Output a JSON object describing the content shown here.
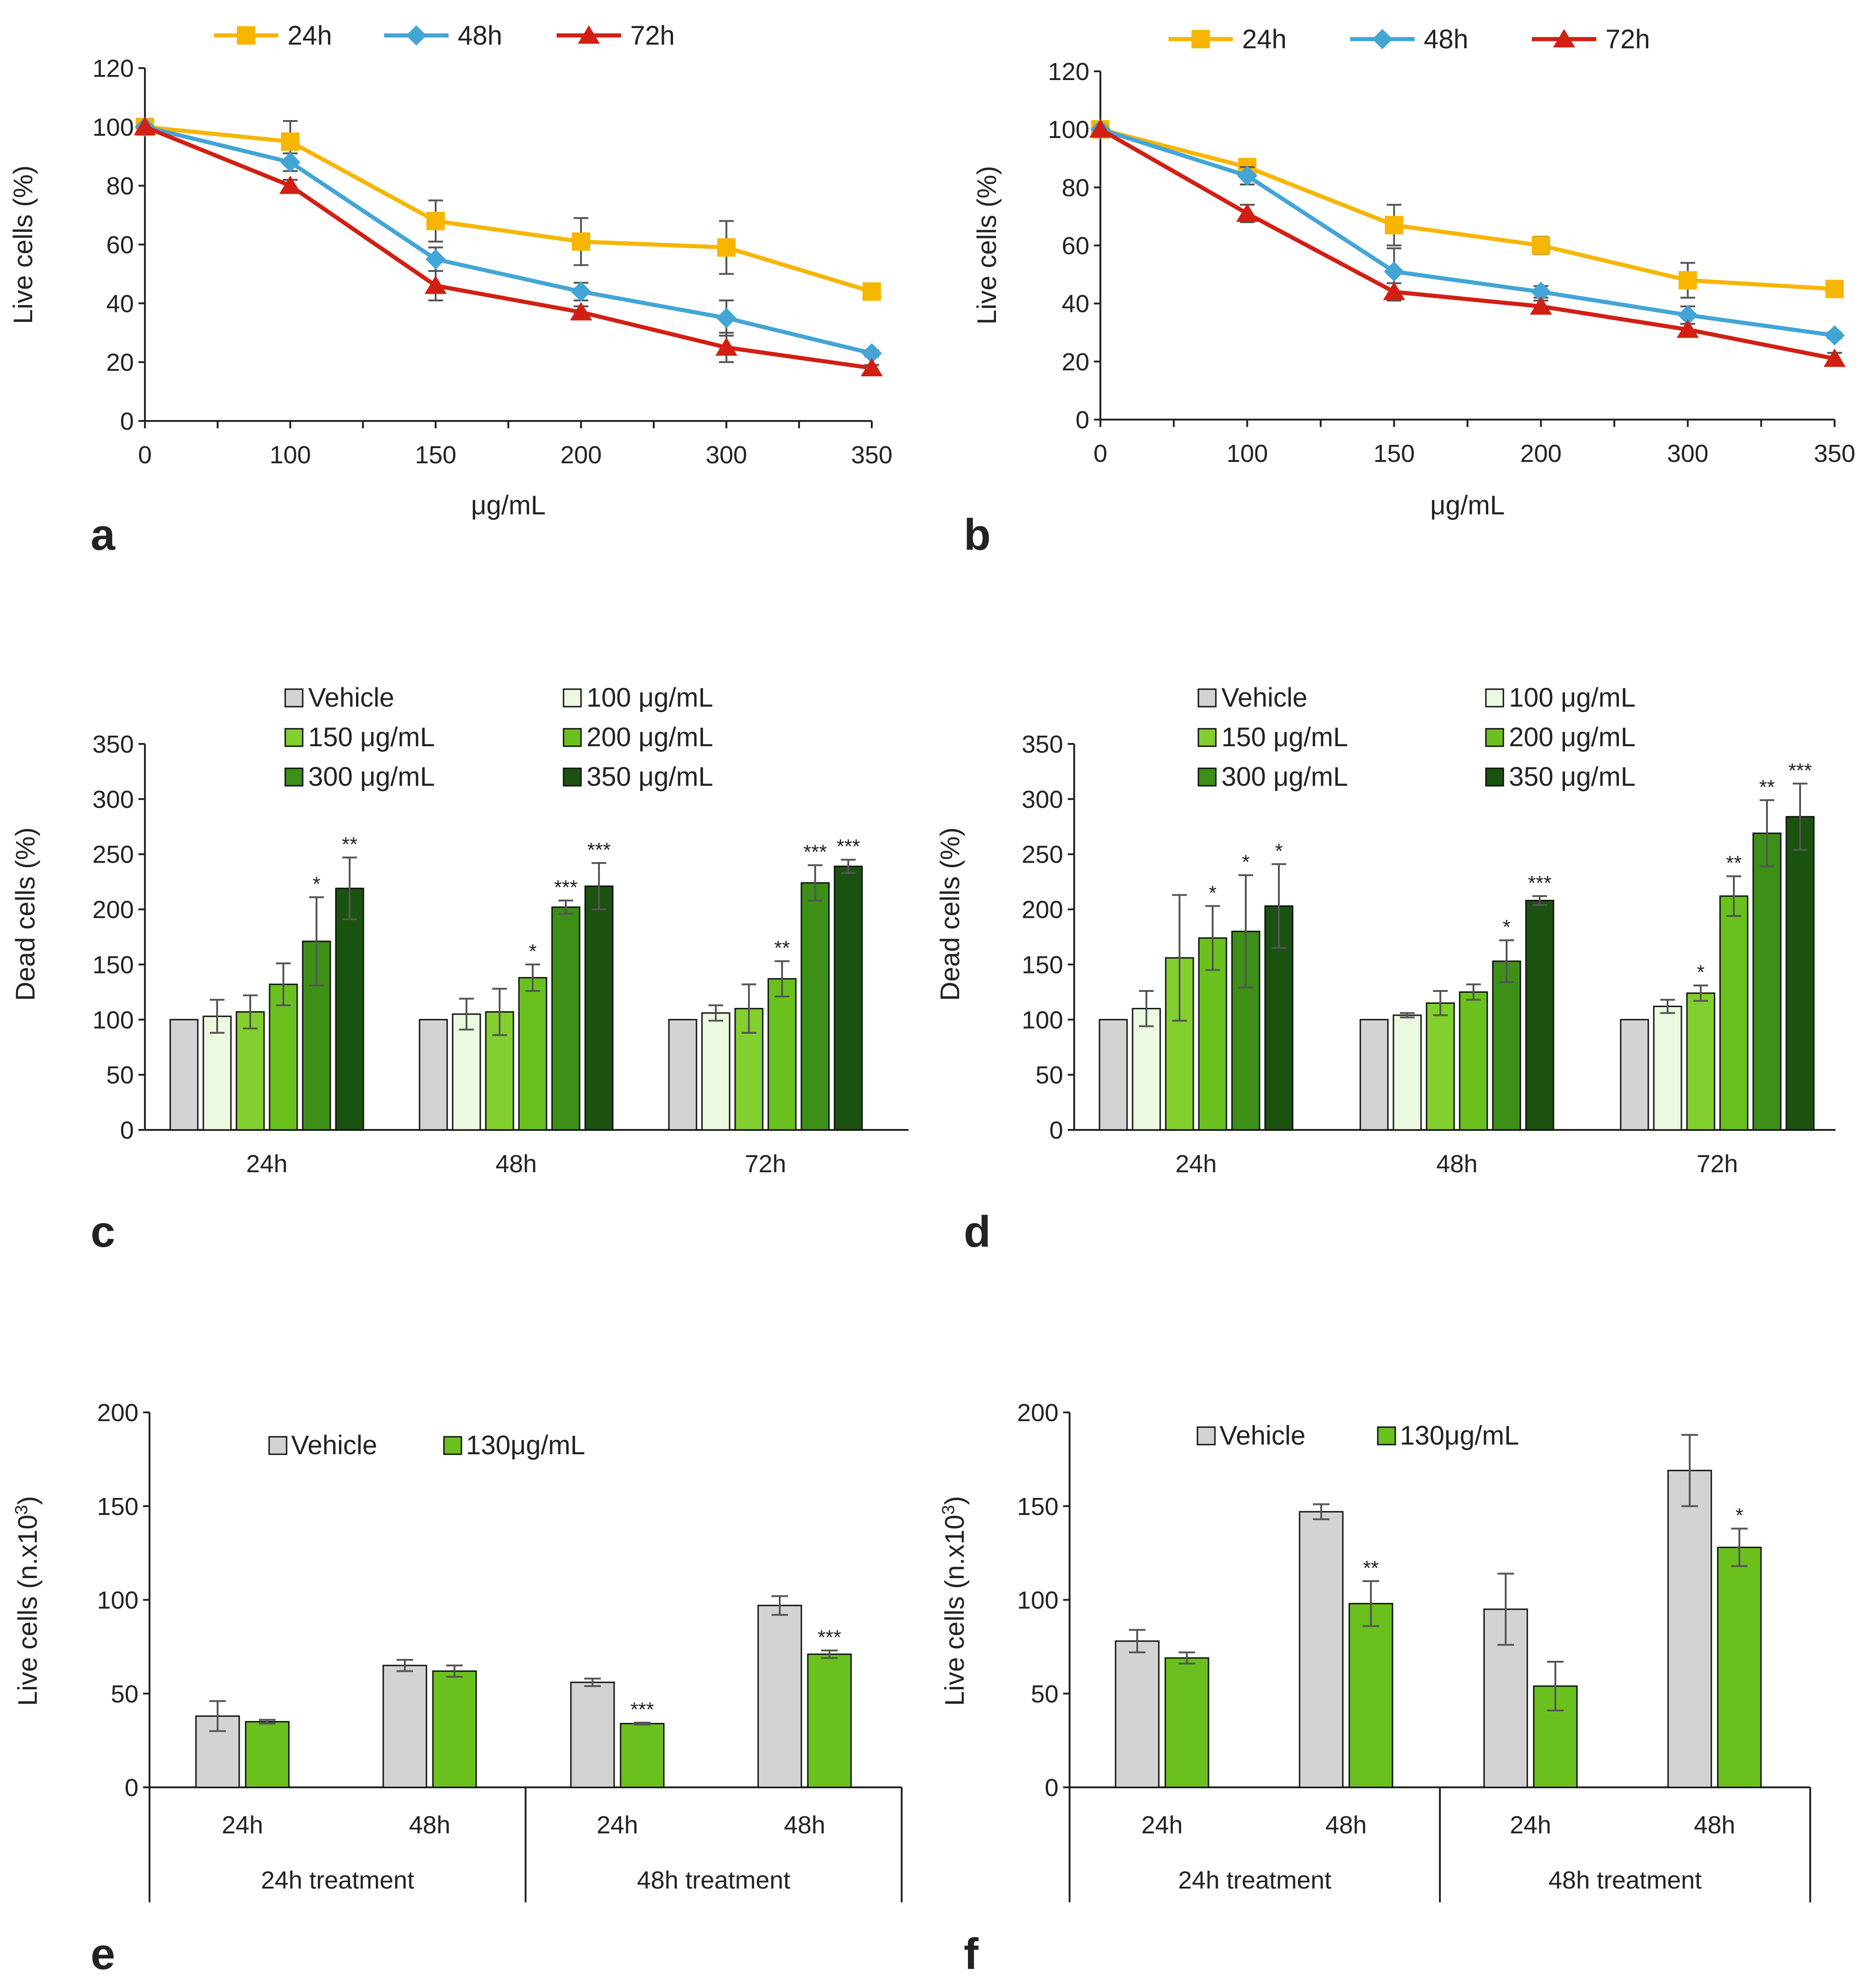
{
  "colors": {
    "c24": "#F7B500",
    "c48": "#42A5D6",
    "c72": "#D21F14",
    "vehicle": "#D3D3D3",
    "c100": "#EAF9DF",
    "c150": "#82CF2E",
    "c200": "#6AC11D",
    "c300": "#3D8F17",
    "c350": "#1A5210",
    "c130": "#6AC11D",
    "axis": "#222222",
    "err": "#555555"
  },
  "chart_data": [
    {
      "panel": "a",
      "type": "line",
      "x": [
        "0",
        "100",
        "150",
        "200",
        "300",
        "350"
      ],
      "xlabel": "μg/mL",
      "ylabel": "Live cells (%)",
      "ylim": [
        0,
        120
      ],
      "yticks": [
        "0",
        "20",
        "40",
        "60",
        "80",
        "100",
        "120"
      ],
      "series": [
        {
          "name": "24h",
          "marker": "square",
          "values": [
            100,
            95,
            68,
            61,
            59,
            44
          ],
          "errors": [
            0,
            7,
            7,
            8,
            9,
            2
          ]
        },
        {
          "name": "48h",
          "marker": "diamond",
          "values": [
            100,
            88,
            55,
            44,
            35,
            23
          ],
          "errors": [
            0,
            3,
            4,
            3,
            6,
            1
          ]
        },
        {
          "name": "72h",
          "marker": "triangle",
          "values": [
            100,
            80,
            46,
            37,
            25,
            18
          ],
          "errors": [
            0,
            2,
            5,
            2,
            5,
            1
          ]
        }
      ]
    },
    {
      "panel": "b",
      "type": "line",
      "x": [
        "0",
        "100",
        "150",
        "200",
        "300",
        "350"
      ],
      "xlabel": "μg/mL",
      "ylabel": "Live cells (%)",
      "ylim": [
        0,
        120
      ],
      "yticks": [
        "0",
        "20",
        "40",
        "60",
        "80",
        "100",
        "120"
      ],
      "series": [
        {
          "name": "24h",
          "marker": "square",
          "values": [
            100,
            87,
            67,
            60,
            48,
            45
          ],
          "errors": [
            0,
            2,
            7,
            3,
            6,
            2
          ]
        },
        {
          "name": "48h",
          "marker": "diamond",
          "values": [
            100,
            84,
            51,
            44,
            36,
            29
          ],
          "errors": [
            0,
            3,
            8,
            2,
            3,
            1
          ]
        },
        {
          "name": "72h",
          "marker": "triangle",
          "values": [
            100,
            71,
            44,
            39,
            31,
            21
          ],
          "errors": [
            0,
            3,
            3,
            2,
            2,
            2
          ]
        }
      ]
    },
    {
      "panel": "c",
      "type": "bar",
      "categories": [
        "24h",
        "48h",
        "72h"
      ],
      "ylabel": "Dead cells (%)",
      "ylim": [
        0,
        350
      ],
      "yticks": [
        "0",
        "50",
        "100",
        "150",
        "200",
        "250",
        "300",
        "350"
      ],
      "series": [
        {
          "name": "Vehicle",
          "values": [
            100,
            100,
            100
          ],
          "errors": [
            0,
            0,
            0
          ],
          "stars": [
            "",
            "",
            ""
          ]
        },
        {
          "name": "100 μg/mL",
          "values": [
            103,
            105,
            106
          ],
          "errors": [
            15,
            14,
            7
          ],
          "stars": [
            "",
            "",
            ""
          ]
        },
        {
          "name": "150 μg/mL",
          "values": [
            107,
            107,
            110
          ],
          "errors": [
            15,
            21,
            22
          ],
          "stars": [
            "",
            "",
            ""
          ]
        },
        {
          "name": "200 μg/mL",
          "values": [
            132,
            138,
            137
          ],
          "errors": [
            19,
            12,
            16
          ],
          "stars": [
            "",
            "*",
            "**"
          ]
        },
        {
          "name": "300 μg/mL",
          "values": [
            171,
            202,
            224
          ],
          "errors": [
            40,
            6,
            16
          ],
          "stars": [
            "*",
            "***",
            "***"
          ]
        },
        {
          "name": "350 μg/mL",
          "values": [
            219,
            221,
            239
          ],
          "errors": [
            28,
            21,
            6
          ],
          "stars": [
            "**",
            "***",
            "***"
          ]
        }
      ]
    },
    {
      "panel": "d",
      "type": "bar",
      "categories": [
        "24h",
        "48h",
        "72h"
      ],
      "ylabel": "Dead cells (%)",
      "ylim": [
        0,
        350
      ],
      "yticks": [
        "0",
        "50",
        "100",
        "150",
        "200",
        "250",
        "300",
        "350"
      ],
      "series": [
        {
          "name": "Vehicle",
          "values": [
            100,
            100,
            100
          ],
          "errors": [
            0,
            0,
            0
          ],
          "stars": [
            "",
            "",
            ""
          ]
        },
        {
          "name": "100 μg/mL",
          "values": [
            110,
            104,
            112
          ],
          "errors": [
            16,
            2,
            6
          ],
          "stars": [
            "",
            "",
            ""
          ]
        },
        {
          "name": "150 μg/mL",
          "values": [
            156,
            115,
            124
          ],
          "errors": [
            57,
            11,
            7
          ],
          "stars": [
            "",
            "",
            "*"
          ]
        },
        {
          "name": "200 μg/mL",
          "values": [
            174,
            125,
            212
          ],
          "errors": [
            29,
            7,
            18
          ],
          "stars": [
            "*",
            "",
            "**"
          ]
        },
        {
          "name": "300 μg/mL",
          "values": [
            180,
            153,
            269
          ],
          "errors": [
            51,
            19,
            30
          ],
          "stars": [
            "*",
            "*",
            "**"
          ]
        },
        {
          "name": "350 μg/mL",
          "values": [
            203,
            208,
            284
          ],
          "errors": [
            38,
            4,
            30
          ],
          "stars": [
            "*",
            "***",
            "***"
          ]
        }
      ]
    },
    {
      "panel": "e",
      "type": "bar",
      "categories": [
        "24h",
        "48h",
        "24h",
        "48h"
      ],
      "groups": [
        "24h treatment",
        "48h treatment"
      ],
      "ylabel": "Live cells (n.x10",
      "ylabel_sup": "3",
      "ylabel_end": ")",
      "ylim": [
        0,
        200
      ],
      "yticks": [
        "0",
        "50",
        "100",
        "150",
        "200"
      ],
      "series": [
        {
          "name": "Vehicle",
          "values": [
            38,
            65,
            56,
            97
          ],
          "errors": [
            8,
            3,
            2,
            5
          ],
          "stars": [
            "",
            "",
            "",
            ""
          ]
        },
        {
          "name": "130μg/mL",
          "values": [
            35,
            62,
            34,
            71
          ],
          "errors": [
            1,
            3,
            0.5,
            2
          ],
          "stars": [
            "",
            "",
            "***",
            "***"
          ]
        }
      ]
    },
    {
      "panel": "f",
      "type": "bar",
      "categories": [
        "24h",
        "48h",
        "24h",
        "48h"
      ],
      "groups": [
        "24h treatment",
        "48h treatment"
      ],
      "ylabel": "Live cells (n.x10",
      "ylabel_sup": "3",
      "ylabel_end": ")",
      "ylim": [
        0,
        200
      ],
      "yticks": [
        "0",
        "50",
        "100",
        "150",
        "200"
      ],
      "series": [
        {
          "name": "Vehicle",
          "values": [
            78,
            147,
            95,
            169
          ],
          "errors": [
            6,
            4,
            19,
            19
          ],
          "stars": [
            "",
            "",
            "",
            ""
          ]
        },
        {
          "name": "130μg/mL",
          "values": [
            69,
            98,
            54,
            128
          ],
          "errors": [
            3,
            12,
            13,
            10
          ],
          "stars": [
            "",
            "**",
            "",
            "*"
          ]
        }
      ]
    }
  ]
}
